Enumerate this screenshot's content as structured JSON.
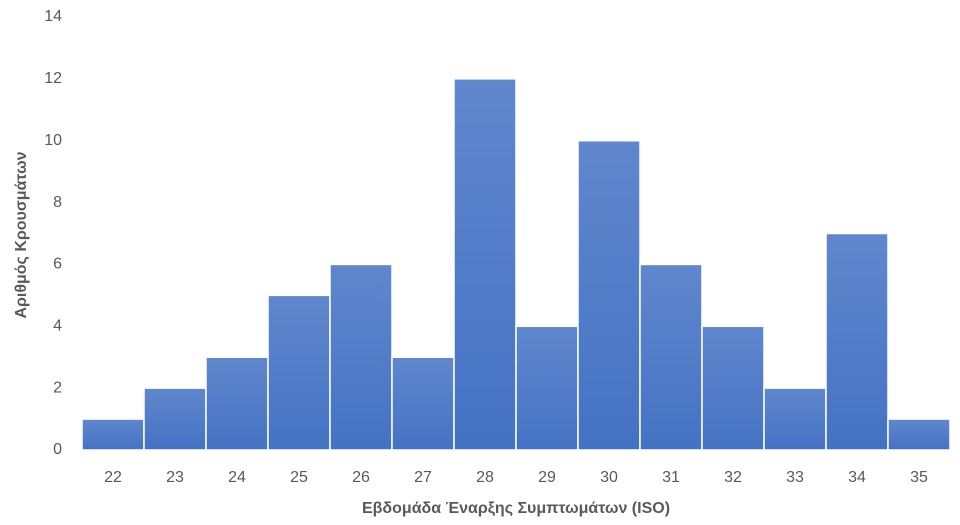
{
  "chart_data": {
    "type": "bar",
    "x_label": "Εβδομάδα Έναρξης Συμπτωμάτων (ISO)",
    "y_label": "Αριθμός Κρουσμάτων",
    "categories": [
      "22",
      "23",
      "24",
      "25",
      "26",
      "27",
      "28",
      "29",
      "30",
      "31",
      "32",
      "33",
      "34",
      "35"
    ],
    "values": [
      1,
      2,
      3,
      5,
      6,
      3,
      12,
      4,
      10,
      6,
      4,
      2,
      7,
      1
    ],
    "color": "#4472c4",
    "ylim": [
      0,
      14
    ],
    "yticks": [
      0,
      2,
      4,
      6,
      8,
      10,
      12,
      14
    ],
    "grid": false
  }
}
